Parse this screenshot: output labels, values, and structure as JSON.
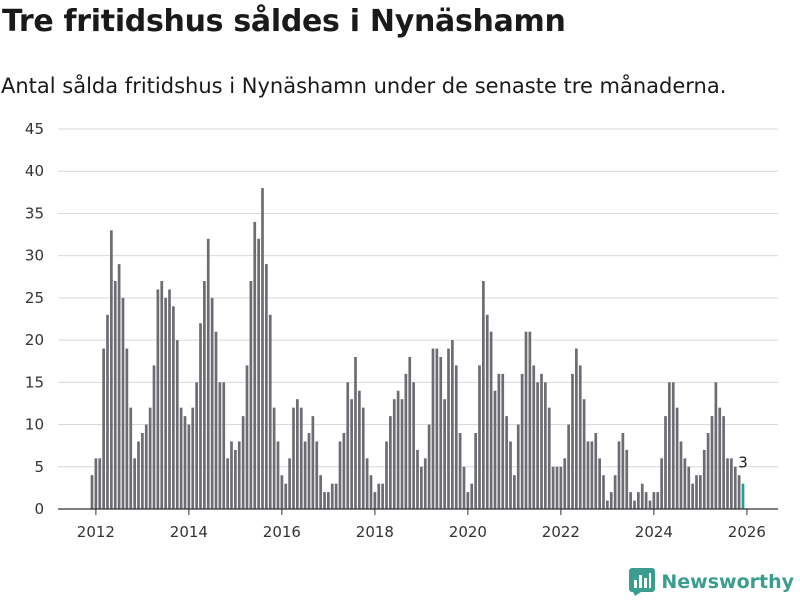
{
  "header": {
    "title": "Tre fritidshus såldes i Nynäshamn",
    "subtitle": "Antal sålda fritidshus i Nynäshamn under de senaste tre månaderna."
  },
  "brand": {
    "name": "Newsworthy",
    "icon": "newsworthy-logo-icon",
    "color": "#3a9d8f"
  },
  "colors": {
    "bar": "#6d6c72",
    "highlight": "#2a9d8f",
    "grid": "#d9d9d9"
  },
  "chart_data": {
    "type": "bar",
    "x_start": "2011-12",
    "x_interval": "month",
    "yticks": [
      0,
      5,
      10,
      15,
      20,
      25,
      30,
      35,
      40,
      45
    ],
    "ylim": [
      0,
      45
    ],
    "xticks": [
      "2012",
      "2014",
      "2016",
      "2018",
      "2020",
      "2022",
      "2024",
      "2026"
    ],
    "grid": true,
    "legend": "none",
    "highlight_last": true,
    "last_value_label": "3",
    "values": [
      4,
      6,
      6,
      19,
      23,
      33,
      27,
      29,
      25,
      19,
      12,
      6,
      8,
      9,
      10,
      12,
      17,
      26,
      27,
      25,
      26,
      24,
      20,
      12,
      11,
      10,
      12,
      15,
      22,
      27,
      32,
      25,
      21,
      15,
      15,
      6,
      8,
      7,
      8,
      11,
      17,
      27,
      34,
      32,
      38,
      29,
      23,
      12,
      8,
      4,
      3,
      6,
      12,
      13,
      12,
      8,
      9,
      11,
      8,
      4,
      2,
      2,
      3,
      3,
      8,
      9,
      15,
      13,
      18,
      14,
      12,
      6,
      4,
      2,
      3,
      3,
      8,
      11,
      13,
      14,
      13,
      16,
      18,
      15,
      7,
      5,
      6,
      10,
      19,
      19,
      18,
      13,
      19,
      20,
      17,
      9,
      5,
      2,
      3,
      9,
      17,
      27,
      23,
      21,
      14,
      16,
      16,
      11,
      8,
      4,
      10,
      16,
      21,
      21,
      17,
      15,
      16,
      15,
      12,
      5,
      5,
      5,
      6,
      10,
      16,
      19,
      17,
      13,
      8,
      8,
      9,
      6,
      4,
      1,
      2,
      4,
      8,
      9,
      7,
      2,
      1,
      2,
      3,
      2,
      1,
      2,
      2,
      6,
      11,
      15,
      15,
      12,
      8,
      6,
      5,
      3,
      4,
      4,
      7,
      9,
      11,
      15,
      12,
      11,
      6,
      6,
      5,
      4,
      3
    ]
  }
}
